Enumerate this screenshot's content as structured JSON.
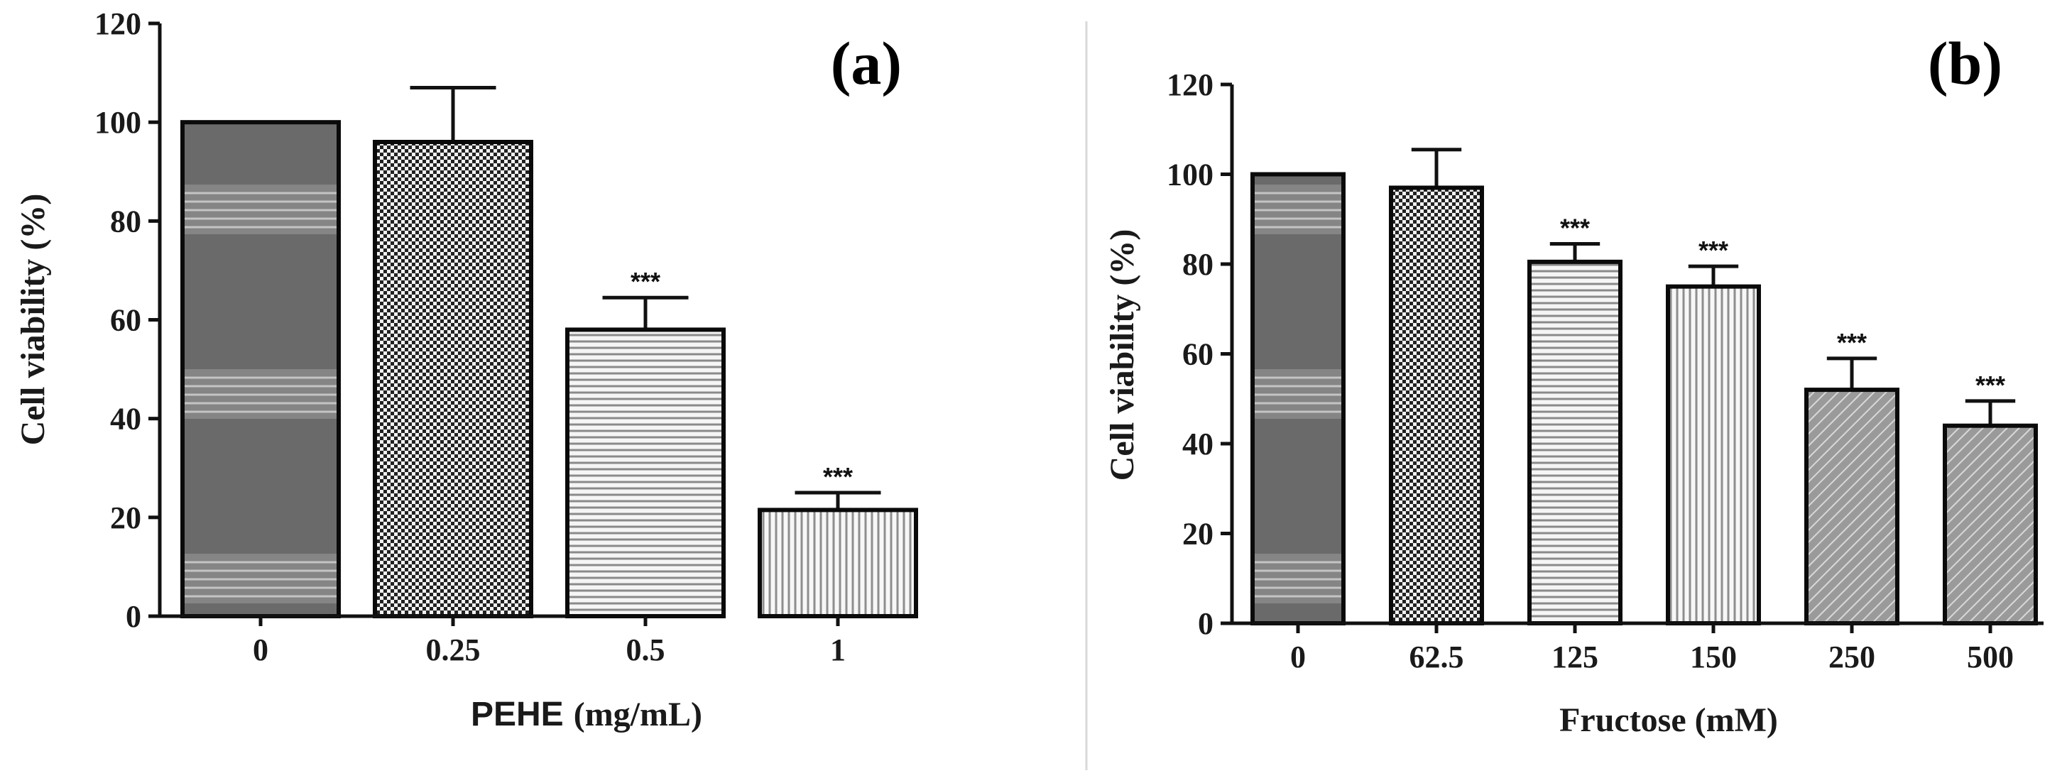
{
  "chart_data": [
    {
      "type": "bar",
      "panel": "(a)",
      "title": "",
      "xlabel": "PEHE (mg/mL)",
      "xlabel_parts": [
        "PEHE",
        "(mg/mL)"
      ],
      "ylabel": "Cell viability (%)",
      "ylim": [
        0,
        120
      ],
      "yticks": [
        0,
        20,
        40,
        60,
        80,
        100,
        120
      ],
      "categories": [
        "0",
        "0.25",
        "0.5",
        "1"
      ],
      "values": [
        100,
        96,
        58,
        21.5
      ],
      "errors": [
        0,
        11,
        6.5,
        3.5
      ],
      "significance": [
        "",
        "",
        "***",
        "***"
      ],
      "fills": [
        "banded-dark",
        "checker",
        "horizontal-lines",
        "vertical-lines"
      ],
      "grid": false
    },
    {
      "type": "bar",
      "panel": "(b)",
      "title": "",
      "xlabel": "Fructose (mM)",
      "ylabel": "Cell viability (%)",
      "ylim": [
        0,
        120
      ],
      "yticks": [
        0,
        20,
        40,
        60,
        80,
        100,
        120
      ],
      "categories": [
        "0",
        "62.5",
        "125",
        "150",
        "250",
        "500"
      ],
      "values": [
        100,
        97,
        80.5,
        75,
        52,
        44
      ],
      "errors": [
        0,
        8.5,
        4,
        4.5,
        7,
        5.5
      ],
      "significance": [
        "",
        "",
        "***",
        "***",
        "***",
        "***"
      ],
      "fills": [
        "banded-dark",
        "checker",
        "horizontal-lines",
        "vertical-lines",
        "diagonal",
        "diagonal"
      ],
      "grid": false
    }
  ]
}
